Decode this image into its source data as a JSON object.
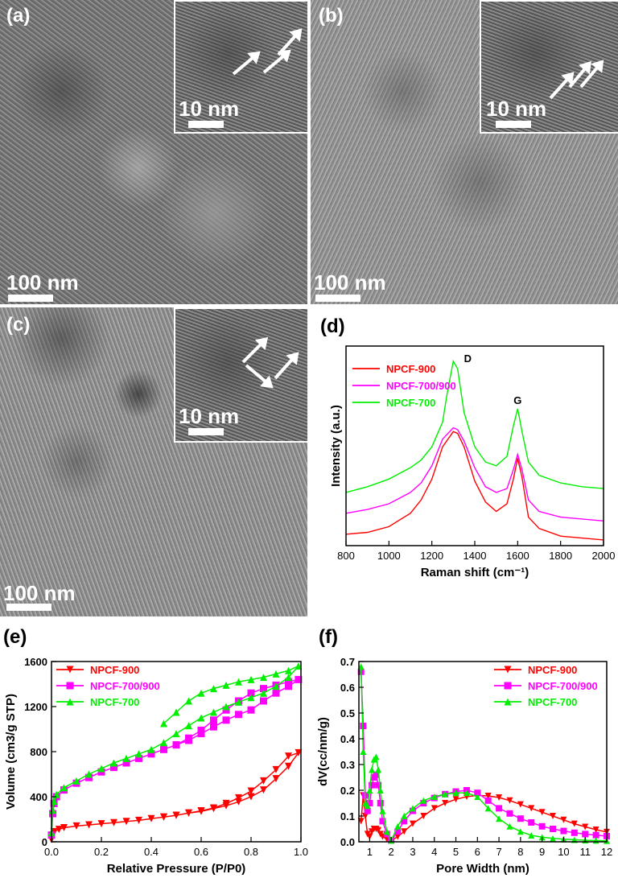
{
  "panels": {
    "a": {
      "label": "(a)",
      "scale_main": "100 nm",
      "scale_inset": "10 nm"
    },
    "b": {
      "label": "(b)",
      "scale_main": "100 nm",
      "scale_inset": "10 nm"
    },
    "c": {
      "label": "(c)",
      "scale_main": "100 nm",
      "scale_inset": "10 nm"
    },
    "d": {
      "label": "(d)"
    },
    "e": {
      "label": "(e)"
    },
    "f": {
      "label": "(f)"
    }
  },
  "chart_data": [
    {
      "id": "d",
      "type": "line",
      "xlabel": "Raman shift (cm⁻¹)",
      "ylabel": "Intensity (a.u.)",
      "xlim": [
        800,
        2000
      ],
      "xticks": [
        800,
        1000,
        1200,
        1400,
        1600,
        1800,
        2000
      ],
      "annotations": [
        {
          "text": "D",
          "x": 1330
        },
        {
          "text": "G",
          "x": 1600
        }
      ],
      "legend_position": "top-left",
      "series": [
        {
          "name": "NPCF-900",
          "color": "#ff0000",
          "x": [
            800,
            900,
            1000,
            1100,
            1150,
            1200,
            1250,
            1300,
            1320,
            1350,
            1400,
            1450,
            1500,
            1550,
            1580,
            1600,
            1620,
            1650,
            1700,
            1800,
            1900,
            2000
          ],
          "y": [
            0.06,
            0.07,
            0.1,
            0.17,
            0.24,
            0.35,
            0.52,
            0.6,
            0.59,
            0.52,
            0.34,
            0.23,
            0.18,
            0.22,
            0.35,
            0.46,
            0.36,
            0.15,
            0.09,
            0.05,
            0.04,
            0.03
          ]
        },
        {
          "name": "NPCF-700/900",
          "color": "#ff00ff",
          "x": [
            800,
            900,
            1000,
            1100,
            1150,
            1200,
            1250,
            1300,
            1320,
            1350,
            1400,
            1450,
            1500,
            1550,
            1580,
            1600,
            1620,
            1650,
            1700,
            1800,
            1900,
            2000
          ],
          "y": [
            0.17,
            0.19,
            0.22,
            0.28,
            0.33,
            0.42,
            0.56,
            0.62,
            0.61,
            0.55,
            0.41,
            0.31,
            0.28,
            0.3,
            0.4,
            0.48,
            0.4,
            0.24,
            0.18,
            0.15,
            0.14,
            0.13
          ]
        },
        {
          "name": "NPCF-700",
          "color": "#00ee00",
          "x": [
            800,
            900,
            1000,
            1100,
            1150,
            1200,
            1250,
            1270,
            1300,
            1320,
            1350,
            1400,
            1450,
            1500,
            1550,
            1580,
            1600,
            1620,
            1650,
            1700,
            1800,
            1900,
            2000
          ],
          "y": [
            0.28,
            0.31,
            0.35,
            0.41,
            0.45,
            0.52,
            0.65,
            0.79,
            0.97,
            0.93,
            0.7,
            0.52,
            0.44,
            0.42,
            0.47,
            0.63,
            0.72,
            0.6,
            0.44,
            0.37,
            0.33,
            0.31,
            0.3
          ]
        }
      ]
    },
    {
      "id": "e",
      "type": "line",
      "xlabel": "Relative Pressure (P/P0)",
      "ylabel": "Volume (cm3/g STP)",
      "xlim": [
        0,
        1.0
      ],
      "ylim": [
        0,
        1600
      ],
      "xticks": [
        0.0,
        0.2,
        0.4,
        0.6,
        0.8,
        1.0
      ],
      "yticks": [
        0,
        400,
        800,
        1200,
        1600
      ],
      "legend_position": "top-left",
      "series": [
        {
          "name": "NPCF-900",
          "color": "#ff0000",
          "marker": "triangle-down",
          "x": [
            0,
            0.005,
            0.01,
            0.03,
            0.05,
            0.1,
            0.15,
            0.2,
            0.25,
            0.3,
            0.35,
            0.4,
            0.45,
            0.5,
            0.55,
            0.6,
            0.65,
            0.7,
            0.75,
            0.8,
            0.85,
            0.9,
            0.95,
            0.99,
            0.95,
            0.9,
            0.85,
            0.8,
            0.75,
            0.7,
            0.65,
            0.6,
            0.55,
            0.5,
            0.45
          ],
          "y": [
            20,
            60,
            90,
            110,
            125,
            140,
            150,
            160,
            170,
            180,
            190,
            205,
            220,
            235,
            255,
            270,
            295,
            320,
            355,
            400,
            460,
            560,
            670,
            790,
            760,
            640,
            540,
            450,
            390,
            340,
            300,
            275,
            255,
            235,
            220
          ]
        },
        {
          "name": "NPCF-700/900",
          "color": "#ff00ff",
          "marker": "square",
          "x": [
            0,
            0.005,
            0.01,
            0.02,
            0.05,
            0.1,
            0.15,
            0.2,
            0.25,
            0.3,
            0.35,
            0.4,
            0.45,
            0.5,
            0.55,
            0.6,
            0.65,
            0.7,
            0.75,
            0.8,
            0.85,
            0.9,
            0.95,
            0.99,
            0.95,
            0.9,
            0.85,
            0.8,
            0.75,
            0.7,
            0.65,
            0.6,
            0.55,
            0.5,
            0.45
          ],
          "y": [
            60,
            250,
            340,
            400,
            460,
            520,
            570,
            620,
            660,
            700,
            740,
            780,
            820,
            860,
            900,
            960,
            1020,
            1080,
            1130,
            1170,
            1250,
            1320,
            1380,
            1440,
            1420,
            1390,
            1360,
            1320,
            1250,
            1170,
            1080,
            990,
            920,
            860,
            820
          ]
        },
        {
          "name": "NPCF-700",
          "color": "#00ee00",
          "marker": "triangle-up",
          "x": [
            0,
            0.005,
            0.01,
            0.02,
            0.05,
            0.1,
            0.15,
            0.2,
            0.25,
            0.3,
            0.35,
            0.4,
            0.45,
            0.5,
            0.55,
            0.6,
            0.65,
            0.7,
            0.75,
            0.8,
            0.85,
            0.9,
            0.95,
            0.99,
            0.95,
            0.9,
            0.85,
            0.8,
            0.75,
            0.7,
            0.65,
            0.6,
            0.55,
            0.5,
            0.45
          ],
          "y": [
            80,
            280,
            360,
            420,
            480,
            540,
            600,
            650,
            700,
            740,
            780,
            820,
            880,
            960,
            1030,
            1100,
            1150,
            1200,
            1240,
            1280,
            1320,
            1380,
            1460,
            1560,
            1520,
            1490,
            1460,
            1440,
            1420,
            1390,
            1360,
            1320,
            1250,
            1150,
            1050
          ]
        }
      ]
    },
    {
      "id": "f",
      "type": "line",
      "xlabel": "Pore Width (nm)",
      "ylabel": "dV(cc/nm/g)",
      "xlim": [
        0.5,
        12
      ],
      "ylim": [
        0,
        0.7
      ],
      "xticks": [
        1,
        2,
        3,
        4,
        5,
        6,
        7,
        8,
        9,
        10,
        11,
        12
      ],
      "yticks": [
        0.0,
        0.1,
        0.2,
        0.3,
        0.4,
        0.5,
        0.6,
        0.7
      ],
      "legend_position": "top-right",
      "series": [
        {
          "name": "NPCF-900",
          "color": "#ff0000",
          "marker": "triangle-down",
          "x": [
            0.6,
            0.7,
            0.8,
            0.9,
            1.0,
            1.1,
            1.2,
            1.3,
            1.4,
            1.5,
            1.6,
            1.8,
            2.0,
            2.3,
            2.6,
            3.0,
            3.5,
            4.0,
            4.5,
            5.0,
            5.5,
            6.0,
            6.5,
            7.0,
            7.5,
            8.0,
            8.5,
            9.0,
            9.5,
            10.0,
            10.5,
            11.0,
            11.5,
            12.0
          ],
          "y": [
            0.08,
            0.18,
            0.1,
            0.03,
            0.02,
            0.04,
            0.05,
            0.05,
            0.045,
            0.03,
            0.02,
            0.01,
            0.005,
            0.02,
            0.04,
            0.07,
            0.1,
            0.13,
            0.15,
            0.165,
            0.175,
            0.18,
            0.178,
            0.172,
            0.16,
            0.145,
            0.13,
            0.115,
            0.1,
            0.085,
            0.07,
            0.058,
            0.047,
            0.038
          ]
        },
        {
          "name": "NPCF-700/900",
          "color": "#ff00ff",
          "marker": "square",
          "x": [
            0.6,
            0.7,
            0.8,
            0.9,
            1.0,
            1.1,
            1.2,
            1.3,
            1.4,
            1.5,
            1.6,
            1.8,
            2.0,
            2.3,
            2.6,
            3.0,
            3.5,
            4.0,
            4.5,
            5.0,
            5.5,
            6.0,
            6.5,
            7.0,
            7.5,
            8.0,
            8.5,
            9.0,
            9.5,
            10.0,
            10.5,
            11.0,
            11.5,
            12.0
          ],
          "y": [
            0.66,
            0.45,
            0.18,
            0.12,
            0.15,
            0.22,
            0.25,
            0.26,
            0.22,
            0.15,
            0.08,
            0.03,
            0.005,
            0.04,
            0.08,
            0.12,
            0.15,
            0.17,
            0.185,
            0.195,
            0.2,
            0.19,
            0.16,
            0.13,
            0.11,
            0.09,
            0.075,
            0.06,
            0.05,
            0.042,
            0.035,
            0.03,
            0.026,
            0.022
          ]
        },
        {
          "name": "NPCF-700",
          "color": "#00ee00",
          "marker": "triangle-up",
          "x": [
            0.6,
            0.7,
            0.8,
            0.9,
            1.0,
            1.1,
            1.2,
            1.3,
            1.4,
            1.5,
            1.6,
            1.8,
            2.0,
            2.3,
            2.6,
            3.0,
            3.5,
            4.0,
            4.5,
            5.0,
            5.5,
            6.0,
            6.5,
            7.0,
            7.5,
            8.0,
            8.5,
            9.0,
            9.5,
            10.0,
            10.5,
            11.0,
            11.5,
            12.0
          ],
          "y": [
            0.68,
            0.35,
            0.15,
            0.14,
            0.2,
            0.28,
            0.32,
            0.33,
            0.28,
            0.2,
            0.12,
            0.04,
            0.005,
            0.06,
            0.1,
            0.13,
            0.16,
            0.175,
            0.185,
            0.19,
            0.19,
            0.175,
            0.13,
            0.09,
            0.06,
            0.04,
            0.025,
            0.018,
            0.013,
            0.01,
            0.008,
            0.006,
            0.005,
            0.004
          ]
        }
      ]
    }
  ]
}
